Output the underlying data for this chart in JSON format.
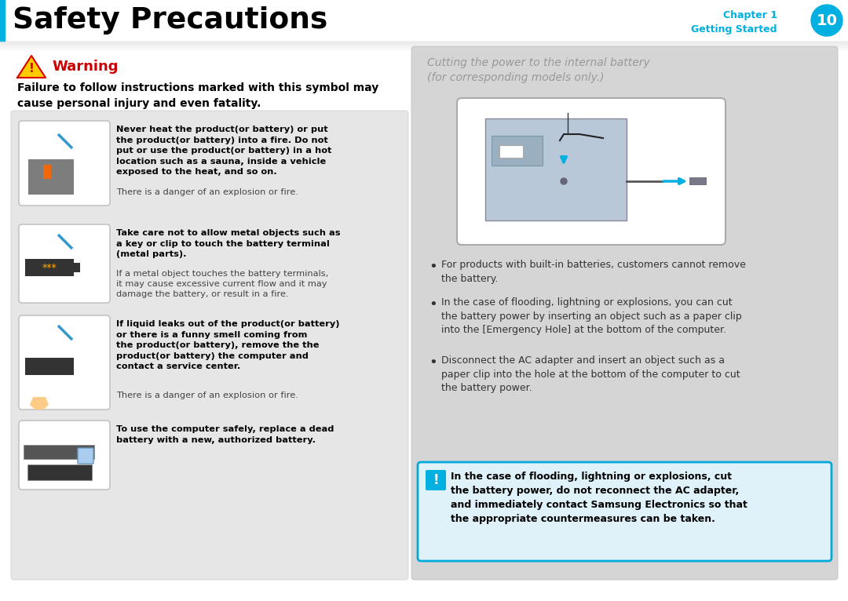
{
  "title": "Safety Precautions",
  "chapter_label": "Chapter 1",
  "chapter_sub": "Getting Started",
  "chapter_num": "10",
  "chapter_color": "#00b0e0",
  "title_color": "#000000",
  "warning_color": "#cc0000",
  "warning_title": "Warning",
  "warning_body": "Failure to follow instructions marked with this symbol may\ncause personal injury and even fatality.",
  "left_panel_bg": "#e6e6e6",
  "right_panel_bg": "#d5d5d5",
  "right_title": "Cutting the power to the internal battery\n(for corresponding models only.)",
  "right_title_color": "#999999",
  "item1_bold": "Never heat the product(or battery) or put\nthe product(or battery) into a fire. Do not\nput or use the product(or battery) in a hot\nlocation such as a sauna, inside a vehicle\nexposed to the heat, and so on.",
  "item1_normal": "There is a danger of an explosion or fire.",
  "item2_bold": "Take care not to allow metal objects such as\na key or clip to touch the battery terminal\n(metal parts).",
  "item2_normal": "If a metal object touches the battery terminals,\nit may cause excessive current flow and it may\ndamage the battery, or result in a fire.",
  "item3_bold": "If liquid leaks out of the product(or battery)\nor there is a funny smell coming from\nthe product(or battery), remove the the\nproduct(or battery) the computer and\ncontact a service center.",
  "item3_normal": "There is a danger of an explosion or fire.",
  "item4_bold": "To use the computer safely, replace a dead\nbattery with a new, authorized battery.",
  "bullet1": "For products with built-in batteries, customers cannot remove\nthe battery.",
  "bullet2": "In the case of flooding, lightning or explosions, you can cut\nthe battery power by inserting an object such as a paper clip\ninto the [Emergency Hole] at the bottom of the computer.",
  "bullet3": "Disconnect the AC adapter and insert an object such as a\npaper clip into the hole at the bottom of the computer to cut\nthe battery power.",
  "caution_box_bg": "#dff2fa",
  "caution_box_border": "#00aadd",
  "caution_bold": "In the case of flooding, lightning or explosions, cut\nthe battery power, do not reconnect the AC adapter,\nand immediately contact Samsung Electronics so that\nthe appropriate countermeasures can be taken.",
  "bg_color": "#ffffff"
}
